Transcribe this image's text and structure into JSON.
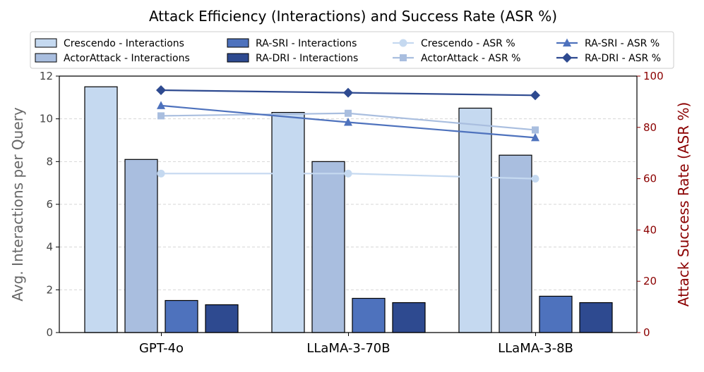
{
  "chart_data": {
    "type": "bar",
    "title": "Attack Efficiency (Interactions) and Success Rate (ASR %)",
    "xlabel": "",
    "ylabel": "Avg. Interactions per Query",
    "ylabel_right": "Attack Success Rate (ASR %)",
    "categories": [
      "GPT-4o",
      "LLaMA-3-70B",
      "LLaMA-3-8B"
    ],
    "ylim": [
      0,
      12
    ],
    "yticks": [
      "0",
      "2",
      "4",
      "6",
      "8",
      "10",
      "12"
    ],
    "ylim_right": [
      0,
      100
    ],
    "yticks_right": [
      "0",
      "20",
      "40",
      "60",
      "80",
      "100"
    ],
    "grid": true,
    "legend_position": "top",
    "colors": {
      "crescendo": "#c5d9f0",
      "actorattack": "#a9bedf",
      "ra_sri": "#4e72bd",
      "ra_dri": "#2e4a90",
      "right_axis": "#8b0000",
      "left_axis_label": "#666666"
    },
    "series": [
      {
        "name": "Crescendo - Interactions",
        "kind": "bar",
        "values": [
          11.5,
          10.3,
          10.5
        ]
      },
      {
        "name": "ActorAttack - Interactions",
        "kind": "bar",
        "values": [
          8.1,
          8.0,
          8.3
        ]
      },
      {
        "name": "RA-SRI - Interactions",
        "kind": "bar",
        "values": [
          1.5,
          1.6,
          1.7
        ]
      },
      {
        "name": "RA-DRI - Interactions",
        "kind": "bar",
        "values": [
          1.3,
          1.4,
          1.4
        ]
      }
    ],
    "line_series": [
      {
        "name": "Crescendo - ASR %",
        "marker": "circle",
        "values": [
          62,
          62,
          60
        ]
      },
      {
        "name": "ActorAttack - ASR %",
        "marker": "square",
        "values": [
          84.5,
          85.5,
          79
        ]
      },
      {
        "name": "RA-SRI - ASR %",
        "marker": "triangle",
        "values": [
          88.5,
          82,
          76
        ]
      },
      {
        "name": "RA-DRI - ASR %",
        "marker": "diamond",
        "values": [
          94.5,
          93.5,
          92.5
        ]
      }
    ],
    "legend": [
      "Crescendo - Interactions",
      "ActorAttack - Interactions",
      "RA-SRI - Interactions",
      "RA-DRI - Interactions",
      "Crescendo - ASR %",
      "ActorAttack - ASR %",
      "RA-SRI - ASR %",
      "RA-DRI - ASR %"
    ]
  }
}
